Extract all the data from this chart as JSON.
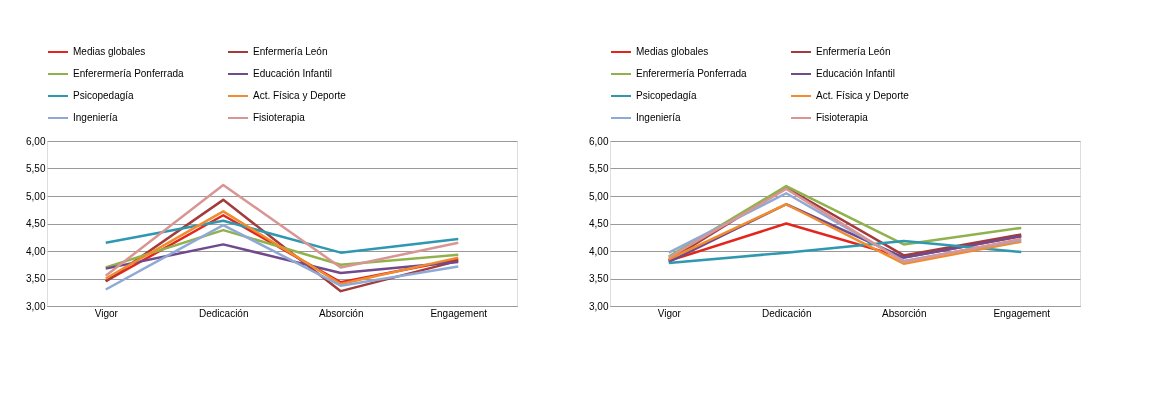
{
  "chart_data": [
    {
      "type": "line",
      "categories": [
        "Vigor",
        "Dedicación",
        "Absorción",
        "Engagement"
      ],
      "ylim": [
        3,
        6
      ],
      "yticks": [
        {
          "value": 3,
          "label": "3,00"
        },
        {
          "value": 3.5,
          "label": "3,50"
        },
        {
          "value": 4,
          "label": "4,00"
        },
        {
          "value": 4.5,
          "label": "4,50"
        },
        {
          "value": 5,
          "label": "5,00"
        },
        {
          "value": 5.5,
          "label": "5,50"
        },
        {
          "value": 6,
          "label": "6,00"
        }
      ],
      "grid": "y",
      "legend": "top",
      "marker": "none",
      "line_style": "solid",
      "series": [
        {
          "name": "Medias globales",
          "color": "#e3261d",
          "values": [
            3.45,
            4.65,
            3.43,
            3.85
          ]
        },
        {
          "name": "Enfermería León",
          "color": "#a33b3b",
          "values": [
            3.45,
            4.93,
            3.27,
            3.82
          ]
        },
        {
          "name": "Enferermería Ponferrada",
          "color": "#8fb24c",
          "values": [
            3.7,
            4.38,
            3.75,
            3.93
          ]
        },
        {
          "name": "Educación Infantil",
          "color": "#6f4a8c",
          "values": [
            3.68,
            4.12,
            3.6,
            3.8
          ]
        },
        {
          "name": "Psicopedagía",
          "color": "#2e98b0",
          "values": [
            4.15,
            4.55,
            3.97,
            4.22
          ]
        },
        {
          "name": "Act. Física y Deporte",
          "color": "#f08c2e",
          "values": [
            3.5,
            4.72,
            3.4,
            3.88
          ]
        },
        {
          "name": "Ingeniería",
          "color": "#8fa9d6",
          "values": [
            3.3,
            4.47,
            3.37,
            3.72
          ]
        },
        {
          "name": "Fisioterapia",
          "color": "#d99594",
          "values": [
            3.55,
            5.2,
            3.7,
            4.15
          ]
        }
      ]
    },
    {
      "type": "line",
      "categories": [
        "Vigor",
        "Dedicación",
        "Absorción",
        "Engagement"
      ],
      "ylim": [
        3,
        6
      ],
      "yticks": [
        {
          "value": 3,
          "label": "3,00"
        },
        {
          "value": 3.5,
          "label": "3,50"
        },
        {
          "value": 4,
          "label": "4,00"
        },
        {
          "value": 4.5,
          "label": "4,50"
        },
        {
          "value": 5,
          "label": "5,00"
        },
        {
          "value": 5.5,
          "label": "5,50"
        },
        {
          "value": 6,
          "label": "6,00"
        }
      ],
      "grid": "y",
      "legend": "top",
      "marker": "none",
      "line_style": "solid",
      "series": [
        {
          "name": "Medias globales",
          "color": "#e3261d",
          "values": [
            3.82,
            4.5,
            3.88,
            4.27
          ]
        },
        {
          "name": "Enfermería León",
          "color": "#a33b3b",
          "values": [
            3.83,
            5.15,
            3.92,
            4.3
          ]
        },
        {
          "name": "Enferermería Ponferrada",
          "color": "#8fb24c",
          "values": [
            3.9,
            5.18,
            4.12,
            4.42
          ]
        },
        {
          "name": "Educación Infantil",
          "color": "#6f4a8c",
          "values": [
            3.8,
            4.85,
            3.88,
            4.27
          ]
        },
        {
          "name": "Psicopedagía",
          "color": "#2e98b0",
          "values": [
            3.78,
            3.97,
            4.18,
            3.98
          ]
        },
        {
          "name": "Act. Física y Deporte",
          "color": "#f08c2e",
          "values": [
            3.85,
            4.85,
            3.77,
            4.17
          ]
        },
        {
          "name": "Ingeniería",
          "color": "#8fa9d6",
          "values": [
            3.97,
            5.05,
            3.82,
            4.2
          ]
        },
        {
          "name": "Fisioterapia",
          "color": "#d99594",
          "values": [
            3.88,
            5.13,
            3.8,
            4.22
          ]
        }
      ]
    }
  ]
}
